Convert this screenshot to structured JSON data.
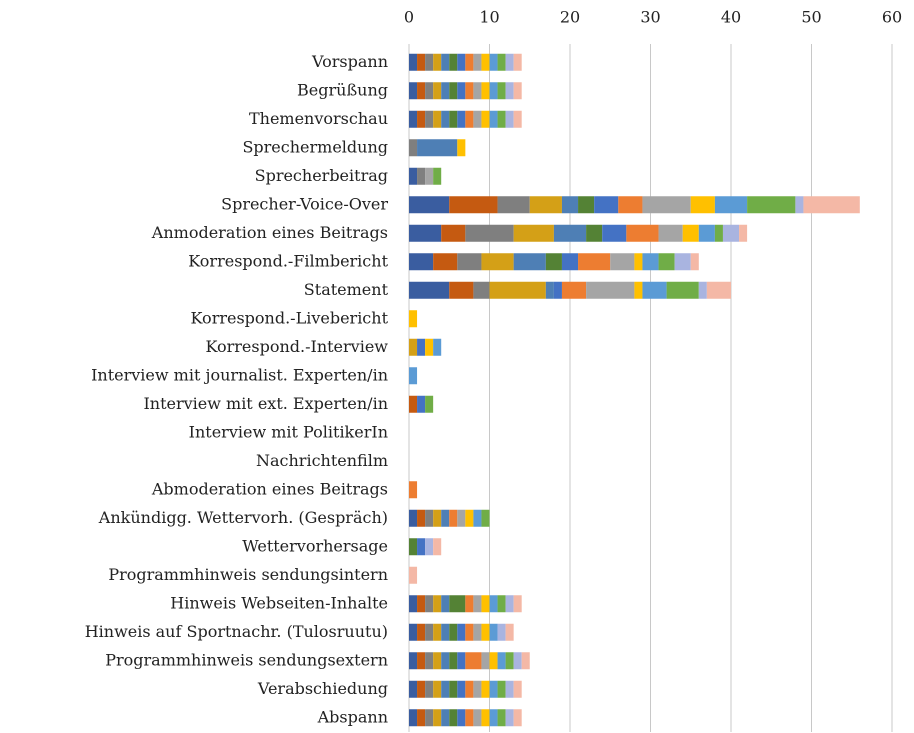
{
  "chart_data": {
    "type": "bar",
    "orientation": "horizontal",
    "stacked": true,
    "grid": true,
    "xlim": [
      0,
      60
    ],
    "xticks": [
      0,
      10,
      20,
      30,
      40,
      50,
      60
    ],
    "categories": [
      "Vorspann",
      "Begrüßung",
      "Themenvorschau",
      "Sprechermeldung",
      "Sprecherbeitrag",
      "Sprecher-Voice-Over",
      "Anmoderation eines Beitrags",
      "Korrespond.-Filmbericht",
      "Statement",
      "Korrespond.-Livebericht",
      "Korrespond.-Interview",
      "Interview mit journalist. Experten/in",
      "Interview mit ext. Experten/in",
      "Interview mit PolitikerIn",
      "Nachrichtenfilm",
      "Abmoderation eines Beitrags",
      "Ankündigg. Wettervorh. (Gespräch)",
      "Wettervorhersage",
      "Programmhinweis sendungsintern ",
      "Hinweis Webseiten-Inhalte",
      "Hinweis auf Sportnachr. (Tulosruutu)",
      "Programmhinweis sendungsextern ",
      "Verabschiedung",
      "Abspann"
    ],
    "series": [
      {
        "color": "#3a5da0",
        "values": [
          1,
          1,
          1,
          0,
          1,
          5,
          4,
          3,
          5,
          0,
          0,
          0,
          0,
          0,
          0,
          0,
          1,
          0,
          0,
          1,
          1,
          1,
          1,
          1
        ]
      },
      {
        "color": "#c55a11",
        "values": [
          1,
          1,
          1,
          0,
          0,
          6,
          3,
          3,
          3,
          0,
          0,
          0,
          1,
          0,
          0,
          0,
          1,
          0,
          0,
          1,
          1,
          1,
          1,
          1
        ]
      },
      {
        "color": "#7f7f7f",
        "values": [
          1,
          1,
          1,
          1,
          1,
          4,
          6,
          3,
          2,
          0,
          0,
          0,
          0,
          0,
          0,
          0,
          1,
          0,
          0,
          1,
          1,
          1,
          1,
          1
        ]
      },
      {
        "color": "#d4a017",
        "values": [
          1,
          1,
          1,
          0,
          0,
          4,
          5,
          4,
          7,
          0,
          1,
          0,
          0,
          0,
          0,
          0,
          1,
          0,
          0,
          1,
          1,
          1,
          1,
          1
        ]
      },
      {
        "color": "#4e7fb5",
        "values": [
          1,
          1,
          1,
          5,
          0,
          2,
          4,
          4,
          1,
          0,
          0,
          0,
          0,
          0,
          0,
          0,
          1,
          0,
          0,
          1,
          1,
          1,
          1,
          1
        ]
      },
      {
        "color": "#548235",
        "values": [
          1,
          1,
          1,
          0,
          0,
          2,
          2,
          2,
          0,
          0,
          0,
          0,
          0,
          0,
          0,
          0,
          0,
          1,
          0,
          2,
          1,
          1,
          1,
          1
        ]
      },
      {
        "color": "#4472c4",
        "values": [
          1,
          1,
          1,
          0,
          0,
          3,
          3,
          2,
          1,
          0,
          1,
          0,
          1,
          0,
          0,
          0,
          0,
          1,
          0,
          0,
          1,
          1,
          1,
          1
        ]
      },
      {
        "color": "#ed7d31",
        "values": [
          1,
          1,
          1,
          0,
          0,
          3,
          4,
          4,
          3,
          0,
          0,
          0,
          0,
          0,
          0,
          1,
          1,
          0,
          0,
          1,
          1,
          2,
          1,
          1
        ]
      },
      {
        "color": "#a5a5a5",
        "values": [
          1,
          1,
          1,
          0,
          1,
          6,
          3,
          3,
          6,
          0,
          0,
          0,
          0,
          0,
          0,
          0,
          1,
          0,
          0,
          1,
          1,
          1,
          1,
          1
        ]
      },
      {
        "color": "#ffc000",
        "values": [
          1,
          1,
          1,
          1,
          0,
          3,
          2,
          1,
          1,
          1,
          1,
          0,
          0,
          0,
          0,
          0,
          1,
          0,
          0,
          1,
          1,
          1,
          1,
          1
        ]
      },
      {
        "color": "#5b9bd5",
        "values": [
          1,
          1,
          1,
          0,
          0,
          4,
          2,
          2,
          3,
          0,
          1,
          1,
          0,
          0,
          0,
          0,
          1,
          0,
          0,
          1,
          1,
          1,
          1,
          1
        ]
      },
      {
        "color": "#70ad47",
        "values": [
          1,
          1,
          1,
          0,
          1,
          6,
          1,
          2,
          4,
          0,
          0,
          0,
          1,
          0,
          0,
          0,
          1,
          0,
          0,
          1,
          0,
          1,
          1,
          1
        ]
      },
      {
        "color": "#a9b4e0",
        "values": [
          1,
          1,
          1,
          0,
          0,
          1,
          2,
          2,
          1,
          0,
          0,
          0,
          0,
          0,
          0,
          0,
          0,
          1,
          0,
          1,
          1,
          1,
          1,
          1
        ]
      },
      {
        "color": "#f4b8a6",
        "values": [
          1,
          1,
          1,
          0,
          0,
          7,
          1,
          1,
          3,
          0,
          0,
          0,
          0,
          0,
          0,
          0,
          0,
          1,
          1,
          1,
          1,
          1,
          1,
          1
        ]
      }
    ]
  }
}
